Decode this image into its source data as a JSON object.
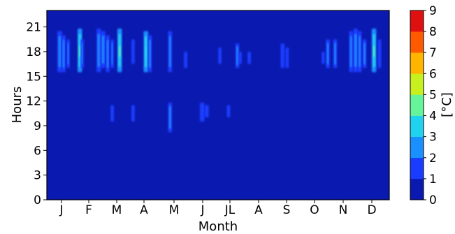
{
  "chart_data": {
    "type": "heatmap",
    "xlabel": "Month",
    "ylabel": "Hours",
    "x_ticks": [
      "J",
      "F",
      "M",
      "A",
      "M",
      "J",
      "JL",
      "A",
      "S",
      "O",
      "N",
      "D"
    ],
    "y_ticks": [
      0,
      3,
      6,
      9,
      12,
      15,
      18,
      21
    ],
    "ylim": [
      0,
      23
    ],
    "xlim": [
      0,
      365
    ],
    "colorbar": {
      "label": "[°C]",
      "min": 0,
      "max": 9,
      "ticks": [
        0,
        1,
        2,
        3,
        4,
        5,
        6,
        7,
        8,
        9
      ],
      "colors": [
        "#0a1ab0",
        "#1a3cff",
        "#1a90ff",
        "#20d2ee",
        "#66f49a",
        "#c8f01e",
        "#ffb400",
        "#ff5a00",
        "#e01010"
      ]
    },
    "background_value": 0.5,
    "patches": [
      {
        "day": 19,
        "width": 4,
        "h0": 15.5,
        "h1": 20.5,
        "value": 2.5
      },
      {
        "day": 26,
        "width": 3,
        "h0": 15.5,
        "h1": 20,
        "value": 2.3
      },
      {
        "day": 34,
        "width": 2,
        "h0": 16,
        "h1": 19.5,
        "value": 2.2
      },
      {
        "day": 52,
        "width": 4,
        "h0": 15.5,
        "h1": 20.8,
        "value": 3.3
      },
      {
        "day": 57,
        "width": 2,
        "h0": 16,
        "h1": 19.5,
        "value": 2.0
      },
      {
        "day": 83,
        "width": 4,
        "h0": 15.5,
        "h1": 20.8,
        "value": 2.8
      },
      {
        "day": 90,
        "width": 4,
        "h0": 16,
        "h1": 20.5,
        "value": 2.6
      },
      {
        "day": 98,
        "width": 3,
        "h0": 15.5,
        "h1": 20,
        "value": 2.4
      },
      {
        "day": 106,
        "width": 2,
        "h0": 16,
        "h1": 19.5,
        "value": 2.0
      },
      {
        "day": 117,
        "width": 4,
        "h0": 15.5,
        "h1": 20.8,
        "value": 3.6
      },
      {
        "day": 140,
        "width": 2,
        "h0": 16.5,
        "h1": 19.5,
        "value": 1.8
      },
      {
        "day": 160,
        "width": 4,
        "h0": 15.5,
        "h1": 20.5,
        "value": 3.0
      },
      {
        "day": 167,
        "width": 3,
        "h0": 15.5,
        "h1": 20,
        "value": 2.5
      },
      {
        "day": 200,
        "width": 3,
        "h0": 15.5,
        "h1": 20.5,
        "value": 2.5
      },
      {
        "day": 226,
        "width": 2,
        "h0": 16,
        "h1": 18,
        "value": 1.6
      },
      {
        "day": 282,
        "width": 2,
        "h0": 16.5,
        "h1": 18.5,
        "value": 1.6
      },
      {
        "day": 310,
        "width": 3,
        "h0": 16,
        "h1": 19,
        "value": 2.0
      },
      {
        "day": 315,
        "width": 2,
        "h0": 16.5,
        "h1": 18,
        "value": 1.6
      },
      {
        "day": 330,
        "width": 2,
        "h0": 16.5,
        "h1": 18,
        "value": 1.6
      },
      {
        "day": 384,
        "width": 3,
        "h0": 16,
        "h1": 19,
        "value": 1.8
      },
      {
        "day": 392,
        "width": 2,
        "h0": 16,
        "h1": 18.5,
        "value": 1.6
      },
      {
        "day": 451,
        "width": 2,
        "h0": 16.5,
        "h1": 18,
        "value": 1.6
      },
      {
        "day": 458,
        "width": 3,
        "h0": 16,
        "h1": 19.5,
        "value": 2.0
      },
      {
        "day": 470,
        "width": 3,
        "h0": 16,
        "h1": 19.5,
        "value": 2.0
      },
      {
        "day": 496,
        "width": 3,
        "h0": 15.5,
        "h1": 20.5,
        "value": 2.4
      },
      {
        "day": 503,
        "width": 4,
        "h0": 15.5,
        "h1": 20.8,
        "value": 2.6
      },
      {
        "day": 510,
        "width": 3,
        "h0": 15.5,
        "h1": 20.5,
        "value": 2.5
      },
      {
        "day": 518,
        "width": 3,
        "h0": 16,
        "h1": 19.5,
        "value": 2.2
      },
      {
        "day": 533,
        "width": 4,
        "h0": 15.5,
        "h1": 20.8,
        "value": 3.4
      },
      {
        "day": 543,
        "width": 2,
        "h0": 16,
        "h1": 19.5,
        "value": 1.8
      },
      {
        "day": 106,
        "width": 2,
        "h0": 9.5,
        "h1": 11.5,
        "value": 1.8
      },
      {
        "day": 200,
        "width": 3,
        "h0": 8.2,
        "h1": 11.8,
        "value": 2.2
      },
      {
        "day": 252,
        "width": 4,
        "h0": 9.5,
        "h1": 11.8,
        "value": 1.9
      },
      {
        "day": 260,
        "width": 3,
        "h0": 10,
        "h1": 11.5,
        "value": 1.7
      },
      {
        "day": 296,
        "width": 2,
        "h0": 10,
        "h1": 11.5,
        "value": 1.6
      },
      {
        "day": 140,
        "width": 2,
        "h0": 9.5,
        "h1": 11.5,
        "value": 1.5
      }
    ]
  }
}
